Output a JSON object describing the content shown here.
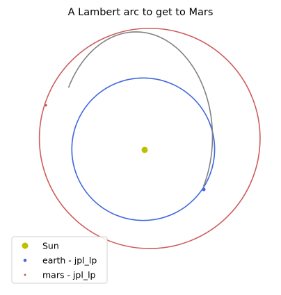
{
  "chart_data": {
    "type": "scatter",
    "title": "A Lambert arc to get to Mars",
    "xlabel": "",
    "ylabel": "",
    "axes_visible": false,
    "grid": false,
    "equal_aspect": true,
    "xlim": [
      -1.62,
      1.62
    ],
    "ylim": [
      -1.72,
      1.72
    ],
    "sun": {
      "name": "Sun",
      "position": [
        0,
        0
      ],
      "color": "#bfbf00"
    },
    "series": [
      {
        "name": "earth - jpl_lp",
        "kind": "orbit",
        "color": "#4169e1",
        "center": [
          -0.02,
          0.01
        ],
        "semi_axes": [
          0.99,
          0.99
        ],
        "endpoint": [
          0.82,
          -0.55
        ]
      },
      {
        "name": "mars - jpl_lp",
        "kind": "orbit",
        "color": "#cd5c5c",
        "center": [
          0.07,
          0.16
        ],
        "semi_axes": [
          1.53,
          1.53
        ],
        "endpoint": [
          -1.37,
          0.62
        ]
      },
      {
        "name": "",
        "kind": "transfer_arc",
        "color": "#808080",
        "from": [
          0.82,
          -0.55
        ],
        "to": [
          -1.37,
          0.62
        ],
        "center": [
          -0.12,
          0.18
        ],
        "semi_axes": [
          1.06,
          1.46
        ],
        "theta_start_deg": -28,
        "theta_end_deg": 152
      }
    ],
    "legend": {
      "placement": "bottom-left",
      "entries": [
        {
          "label": "Sun",
          "color": "#bfbf00",
          "marker": "large-dot"
        },
        {
          "label": "earth - jpl_lp",
          "color": "#4169e1",
          "marker": "small-dot"
        },
        {
          "label": "mars - jpl_lp",
          "color": "#cd5c5c",
          "marker": "tiny-dot"
        }
      ]
    }
  }
}
